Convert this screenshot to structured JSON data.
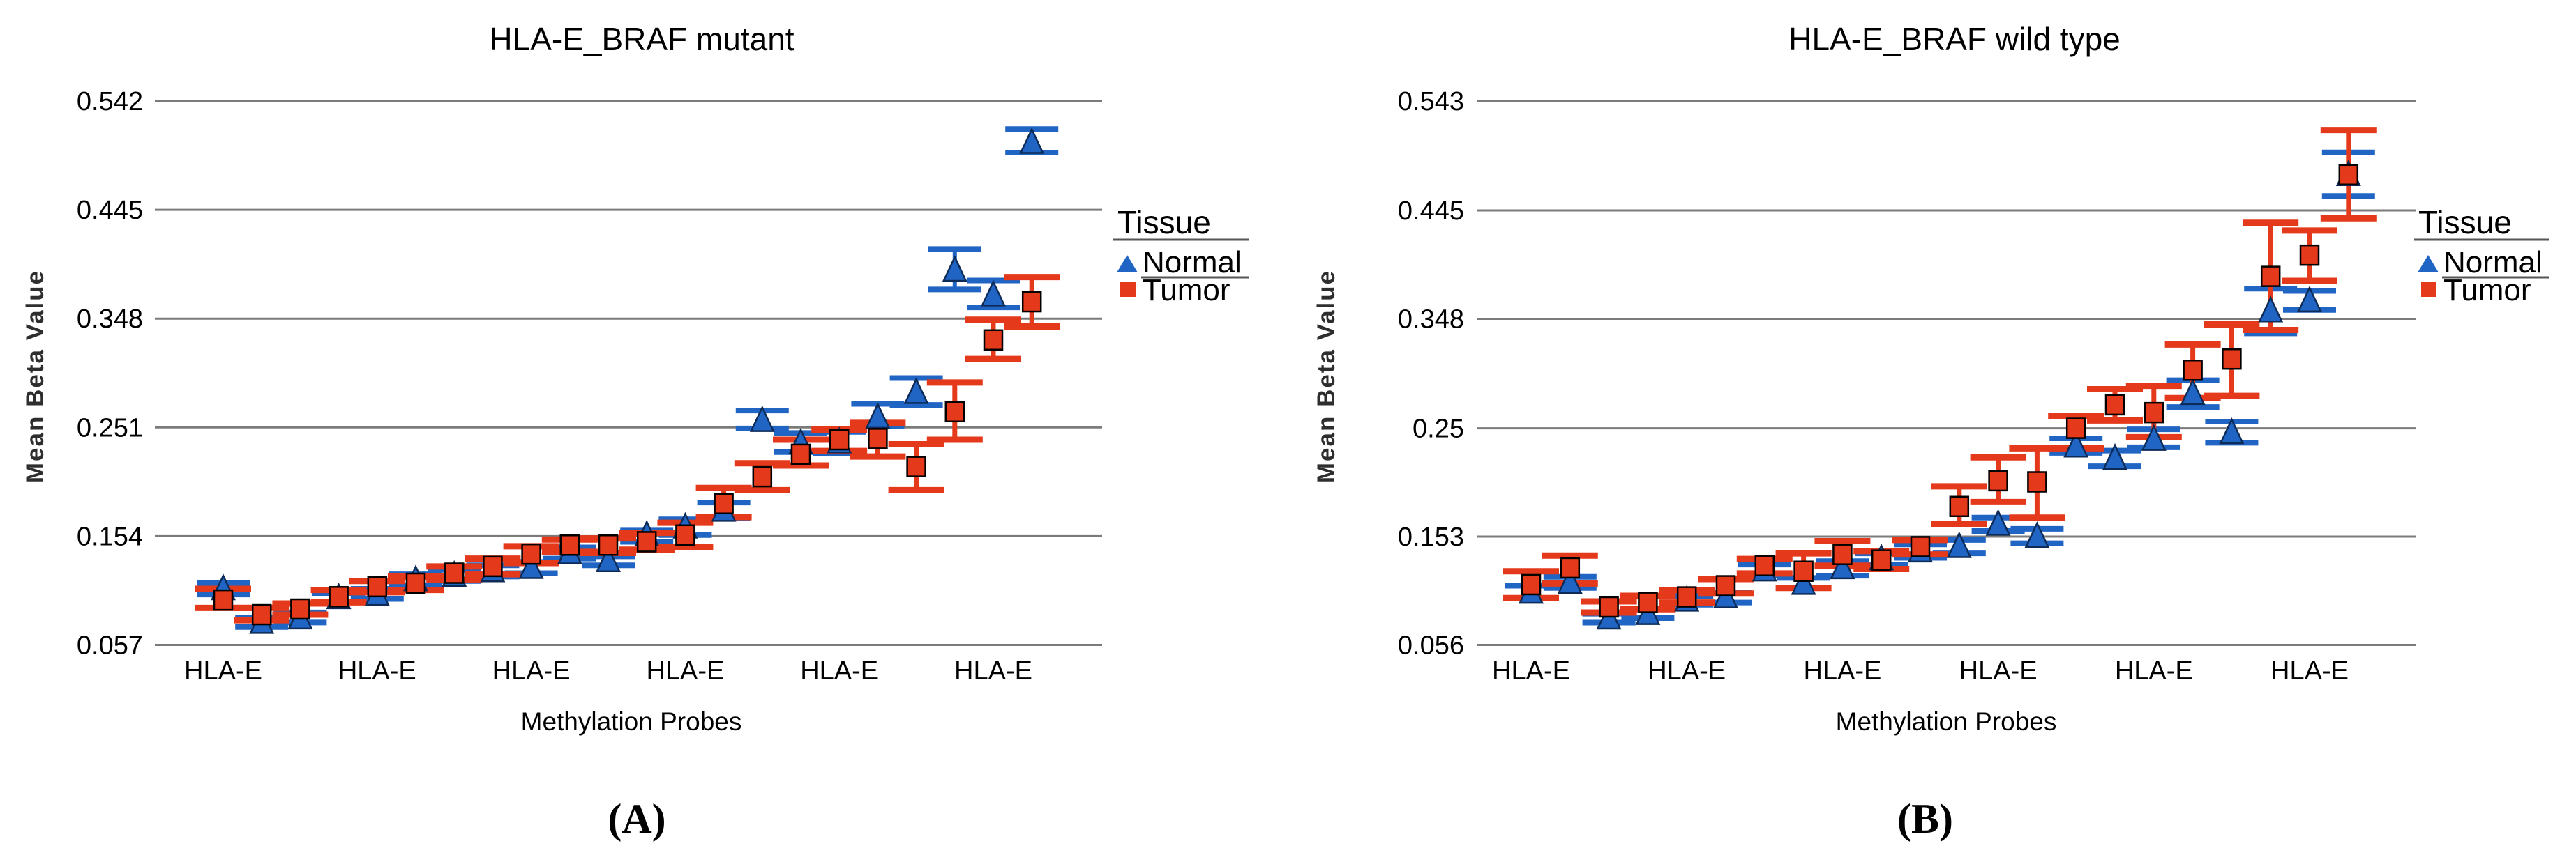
{
  "figure": {
    "background": "#ffffff",
    "colors": {
      "normal": "#2064C4",
      "normal_stroke": "#0d2b57",
      "tumor": "#E5391B",
      "tumor_stroke": "#000000",
      "gridline": "#7b7b7b",
      "legend_rule": "#555555"
    },
    "point_format": [
      "mean",
      "lo",
      "hi"
    ]
  },
  "chart_data": [
    {
      "id": "A",
      "type": "scatter",
      "title": "HLA-E_BRAF mutant",
      "caption": "(A)",
      "xlabel": "Methylation Probes",
      "ylabel": "Mean Beta Value",
      "gene": "HLA-E",
      "x_tick_label": "HLA-E",
      "x_tick_probe_indices": [
        0,
        4,
        8,
        12,
        16,
        20
      ],
      "ylim": [
        0.057,
        0.542
      ],
      "yticks": [
        "0.057",
        "0.154",
        "0.251",
        "0.348",
        "0.445",
        "0.542"
      ],
      "grid": true,
      "legend": {
        "title": "Tissue",
        "position": "right",
        "items": [
          {
            "label": "Normal",
            "marker": "triangle",
            "underline": true
          },
          {
            "label": "Tumor",
            "marker": "square",
            "underline": false
          }
        ]
      },
      "series": [
        {
          "name": "Normal",
          "key": "normal",
          "marker": "triangle",
          "points": [
            [
              0.107,
              0.102,
              0.112
            ],
            [
              0.077,
              0.073,
              0.081
            ],
            [
              0.081,
              0.077,
              0.086
            ],
            [
              0.099,
              0.095,
              0.103
            ],
            [
              0.102,
              0.098,
              0.107
            ],
            [
              0.115,
              0.11,
              0.12
            ],
            [
              0.119,
              0.114,
              0.124
            ],
            [
              0.123,
              0.118,
              0.128
            ],
            [
              0.126,
              0.121,
              0.131
            ],
            [
              0.139,
              0.134,
              0.144
            ],
            [
              0.132,
              0.128,
              0.136
            ],
            [
              0.155,
              0.149,
              0.159
            ],
            [
              0.162,
              0.155,
              0.169
            ],
            [
              0.177,
              0.17,
              0.184
            ],
            [
              0.257,
              0.25,
              0.266
            ],
            [
              0.237,
              0.229,
              0.246
            ],
            [
              0.238,
              0.228,
              0.247
            ],
            [
              0.26,
              0.252,
              0.272
            ],
            [
              0.282,
              0.271,
              0.295
            ],
            [
              0.391,
              0.374,
              0.41
            ],
            [
              0.369,
              0.358,
              0.382
            ],
            [
              0.505,
              0.496,
              0.517
            ]
          ]
        },
        {
          "name": "Tumor",
          "key": "tumor",
          "marker": "square",
          "points": [
            [
              0.097,
              0.09,
              0.107
            ],
            [
              0.084,
              0.079,
              0.09
            ],
            [
              0.089,
              0.084,
              0.094
            ],
            [
              0.1,
              0.095,
              0.106
            ],
            [
              0.109,
              0.104,
              0.114
            ],
            [
              0.112,
              0.106,
              0.118
            ],
            [
              0.121,
              0.115,
              0.127
            ],
            [
              0.127,
              0.12,
              0.134
            ],
            [
              0.138,
              0.13,
              0.145
            ],
            [
              0.146,
              0.14,
              0.151
            ],
            [
              0.146,
              0.139,
              0.152
            ],
            [
              0.149,
              0.142,
              0.157
            ],
            [
              0.155,
              0.144,
              0.166
            ],
            [
              0.183,
              0.171,
              0.197
            ],
            [
              0.207,
              0.195,
              0.219
            ],
            [
              0.227,
              0.217,
              0.24
            ],
            [
              0.24,
              0.23,
              0.249
            ],
            [
              0.241,
              0.225,
              0.255
            ],
            [
              0.216,
              0.195,
              0.236
            ],
            [
              0.265,
              0.24,
              0.291
            ],
            [
              0.329,
              0.312,
              0.347
            ],
            [
              0.363,
              0.341,
              0.385
            ]
          ]
        }
      ]
    },
    {
      "id": "B",
      "type": "scatter",
      "title": "HLA-E_BRAF wild type",
      "caption": "(B)",
      "xlabel": "Methylation Probes",
      "ylabel": "Mean Beta Value",
      "gene": "HLA-E",
      "x_tick_label": "HLA-E",
      "x_tick_probe_indices": [
        0,
        4,
        8,
        12,
        16,
        20
      ],
      "ylim": [
        0.056,
        0.543
      ],
      "yticks": [
        "0.056",
        "0.153",
        "0.25",
        "0.348",
        "0.445",
        "0.543"
      ],
      "grid": true,
      "legend": {
        "title": "Tissue",
        "position": "right",
        "items": [
          {
            "label": "Normal",
            "marker": "triangle",
            "underline": true
          },
          {
            "label": "Tumor",
            "marker": "square",
            "underline": false
          }
        ]
      },
      "series": [
        {
          "name": "Normal",
          "key": "normal",
          "marker": "triangle",
          "points": [
            [
              0.103,
              0.098,
              0.109
            ],
            [
              0.112,
              0.107,
              0.117
            ],
            [
              0.08,
              0.076,
              0.084
            ],
            [
              0.084,
              0.08,
              0.088
            ],
            [
              0.096,
              0.092,
              0.1
            ],
            [
              0.099,
              0.094,
              0.103
            ],
            [
              0.123,
              0.118,
              0.128
            ],
            [
              0.111,
              0.107,
              0.116
            ],
            [
              0.125,
              0.118,
              0.131
            ],
            [
              0.133,
              0.128,
              0.138
            ],
            [
              0.14,
              0.134,
              0.146
            ],
            [
              0.144,
              0.138,
              0.15
            ],
            [
              0.164,
              0.158,
              0.17
            ],
            [
              0.153,
              0.147,
              0.16
            ],
            [
              0.234,
              0.228,
              0.241
            ],
            [
              0.223,
              0.216,
              0.23
            ],
            [
              0.24,
              0.233,
              0.249
            ],
            [
              0.281,
              0.269,
              0.293
            ],
            [
              0.246,
              0.237,
              0.256
            ],
            [
              0.355,
              0.335,
              0.375
            ],
            [
              0.364,
              0.356,
              0.373
            ],
            [
              0.477,
              0.458,
              0.497
            ]
          ]
        },
        {
          "name": "Tumor",
          "key": "tumor",
          "marker": "square",
          "points": [
            [
              0.11,
              0.098,
              0.122
            ],
            [
              0.125,
              0.111,
              0.136
            ],
            [
              0.09,
              0.085,
              0.095
            ],
            [
              0.094,
              0.088,
              0.1
            ],
            [
              0.099,
              0.094,
              0.105
            ],
            [
              0.109,
              0.102,
              0.115
            ],
            [
              0.127,
              0.12,
              0.133
            ],
            [
              0.122,
              0.107,
              0.138
            ],
            [
              0.137,
              0.127,
              0.149
            ],
            [
              0.132,
              0.124,
              0.14
            ],
            [
              0.144,
              0.137,
              0.15
            ],
            [
              0.18,
              0.164,
              0.198
            ],
            [
              0.203,
              0.184,
              0.224
            ],
            [
              0.202,
              0.17,
              0.232
            ],
            [
              0.25,
              0.232,
              0.261
            ],
            [
              0.271,
              0.257,
              0.285
            ],
            [
              0.264,
              0.242,
              0.288
            ],
            [
              0.302,
              0.277,
              0.325
            ],
            [
              0.312,
              0.279,
              0.343
            ],
            [
              0.386,
              0.338,
              0.434
            ],
            [
              0.405,
              0.382,
              0.427
            ],
            [
              0.477,
              0.438,
              0.517
            ]
          ]
        }
      ]
    }
  ]
}
